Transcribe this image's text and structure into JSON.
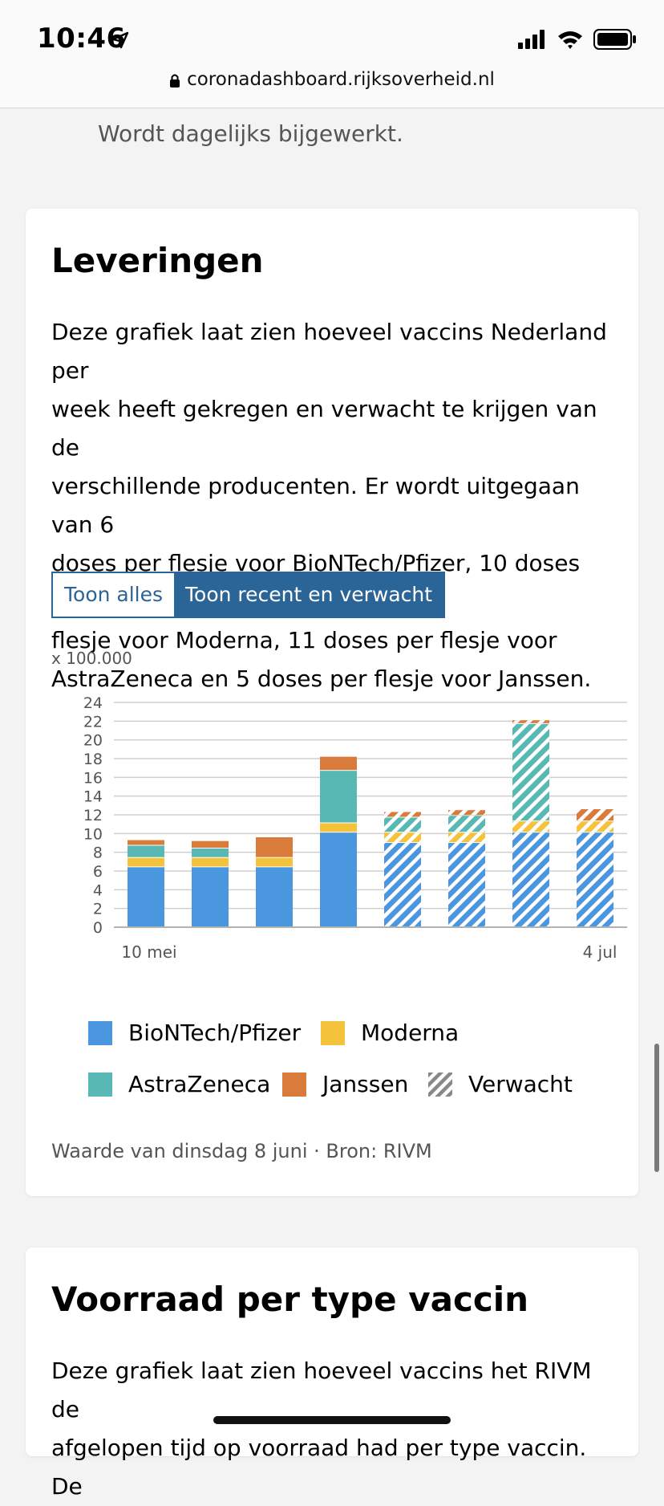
{
  "status": {
    "time": "10:46"
  },
  "browser": {
    "url": "coronadashboard.rijksoverheid.nl"
  },
  "top_note": "Wordt dagelijks bijgewerkt.",
  "deliveries": {
    "title": "Leveringen",
    "description_lines": [
      "Deze grafiek laat zien hoeveel vaccins Nederland per",
      "week heeft gekregen en verwacht te krijgen van de",
      "verschillende producenten. Er wordt uitgegaan van 6",
      "doses per flesje voor BioNTech/Pfizer, 10 doses per",
      "flesje voor Moderna, 11 doses per flesje voor",
      "AstraZeneca en 5 doses per flesje voor Janssen."
    ],
    "toggle": {
      "all": "Toon alles",
      "recent": "Toon recent en verwacht"
    },
    "unit_label": "x 100.000",
    "legend": {
      "pfizer": "BioNTech/Pfizer",
      "moderna": "Moderna",
      "astrazeneca": "AstraZeneca",
      "janssen": "Janssen",
      "expected": "Verwacht"
    },
    "source": "Waarde van dinsdag 8 juni · Bron: RIVM"
  },
  "colors": {
    "pfizer": "#4a97e0",
    "moderna": "#f5c33b",
    "astrazeneca": "#58b8b3",
    "janssen": "#d97b3a",
    "accent": "#2b6597"
  },
  "chart_data": {
    "type": "bar",
    "stacked": true,
    "ylim": [
      0,
      24
    ],
    "yticks": [
      0,
      2,
      4,
      6,
      8,
      10,
      12,
      14,
      16,
      18,
      20,
      22,
      24
    ],
    "x_tick_labels": [
      "10 mei",
      "4 jul"
    ],
    "categories": [
      "",
      "",
      "",
      "",
      "",
      "",
      "",
      ""
    ],
    "expected_from_index": 4,
    "series": [
      {
        "name": "BioNTech/Pfizer",
        "values": [
          6.4,
          6.4,
          6.4,
          10.1,
          9.0,
          9.0,
          10.1,
          10.1
        ]
      },
      {
        "name": "Moderna",
        "values": [
          1.0,
          1.0,
          1.0,
          1.0,
          1.1,
          1.1,
          1.2,
          1.2
        ]
      },
      {
        "name": "AstraZeneca",
        "values": [
          1.3,
          1.0,
          0.0,
          5.6,
          1.6,
          1.8,
          10.4,
          0.0
        ]
      },
      {
        "name": "Janssen",
        "values": [
          0.6,
          0.8,
          2.2,
          1.5,
          0.6,
          0.6,
          0.4,
          1.3
        ]
      }
    ]
  },
  "stock": {
    "title": "Voorraad per type vaccin",
    "description_lines": [
      "Deze grafiek laat zien hoeveel vaccins het RIVM de",
      "afgelopen tijd op voorraad had per type vaccin. De"
    ]
  }
}
